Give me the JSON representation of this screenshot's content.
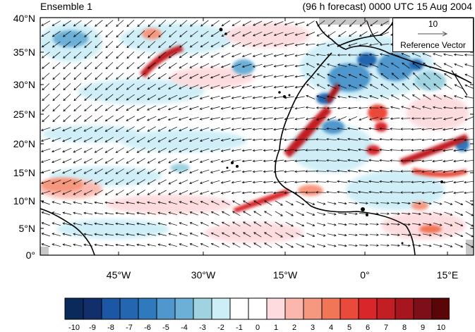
{
  "title_left": "Ensemble 1",
  "title_right": "(96 h forecast) 0000 UTC 15 Aug 2004",
  "lat_labels": [
    "40°N",
    "35°N",
    "30°N",
    "25°N",
    "20°N",
    "15°N",
    "10°N",
    "5°N",
    "0°"
  ],
  "lon_labels": [
    "45°W",
    "30°W",
    "15°W",
    "0°",
    "15°E"
  ],
  "reference_vector": {
    "value": "10",
    "label": "Reference Vector"
  },
  "colorbar": {
    "labels": [
      "-10",
      "-9",
      "-8",
      "-7",
      "-6",
      "-5",
      "-4",
      "-3",
      "-2",
      "-1",
      "0",
      "1",
      "2",
      "3",
      "4",
      "5",
      "6",
      "7",
      "8",
      "9",
      "10"
    ],
    "colors": [
      "#0b2a5c",
      "#11306b",
      "#1b57a4",
      "#2466b0",
      "#2f79bd",
      "#4f97cc",
      "#6cb0d7",
      "#9fd3e0",
      "#cdeef7",
      "#ffffff",
      "#ffffff",
      "#fddbde",
      "#fbb7ad",
      "#f6977f",
      "#f17657",
      "#e94a3b",
      "#d9262b",
      "#c11f23",
      "#a6161e",
      "#7e0f18",
      "#5a0609"
    ]
  },
  "map": {
    "lon_range": [
      -60,
      20
    ],
    "lat_range": [
      0,
      40
    ],
    "colors": {
      "coast": "#000000",
      "missing_land": "#c8c8c8",
      "arrow": "#000000"
    }
  }
}
